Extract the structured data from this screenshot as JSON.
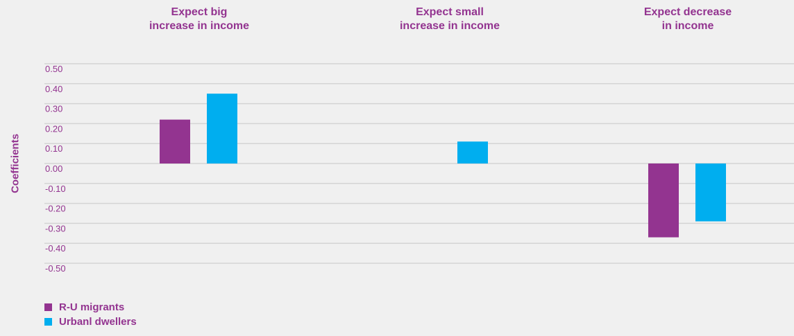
{
  "chart_data": {
    "type": "bar",
    "categories": [
      "Expect big\nincrease in income",
      "Expect small\nincrease in income",
      "Expect decrease\nin income"
    ],
    "category_labels": [
      [
        "Expect big",
        "increase in income"
      ],
      [
        "Expect small",
        "increase in income"
      ],
      [
        "Expect decrease",
        "in income"
      ]
    ],
    "series": [
      {
        "name": "R-U migrants",
        "color": "#933490",
        "values": [
          0.22,
          null,
          -0.37
        ]
      },
      {
        "name": "Urbanl dwellers",
        "color": "#00aeef",
        "values": [
          0.35,
          0.11,
          -0.29
        ]
      }
    ],
    "ylabel": "Coefficients",
    "ylim": [
      -0.5,
      0.5
    ],
    "yticks": [
      "0.50",
      "0.40",
      "0.30",
      "0.20",
      "0.10",
      "0.00",
      "-0.10",
      "-0.20",
      "-0.30",
      "-0.40",
      "-0.50"
    ],
    "grid": true,
    "legend_position": "bottom-left"
  }
}
